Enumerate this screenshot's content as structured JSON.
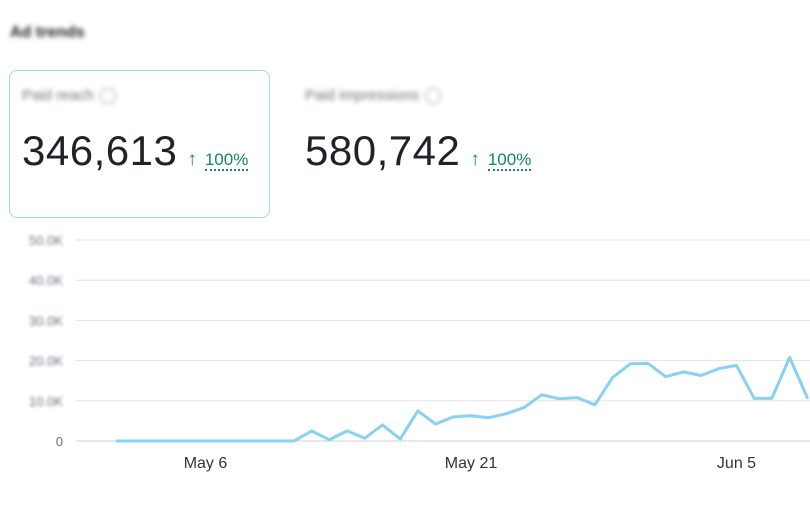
{
  "section": {
    "title": "Ad trends"
  },
  "metrics": [
    {
      "label": "Paid reach",
      "value": "346,613",
      "trend_arrow": "↑",
      "trend_pct": "100%",
      "selected": true
    },
    {
      "label": "Paid impressions",
      "value": "580,742",
      "trend_arrow": "↑",
      "trend_pct": "100%",
      "selected": false
    }
  ],
  "colors": {
    "line": "#87d2f2",
    "accent_border": "#9edfd9",
    "trend_up": "#118a5e",
    "grid": "#e3e3e3"
  },
  "icons": {
    "info": "info-circle-icon",
    "trend": "arrow-up-icon"
  },
  "chart_data": {
    "type": "line",
    "title": "",
    "y_tick_labels": [
      "0",
      "10.0K",
      "20.0K",
      "30.0K",
      "40.0K",
      "50.0K"
    ],
    "ylim": [
      0,
      50000
    ],
    "x_tick_labels": [
      {
        "label": "May 6",
        "index": 5
      },
      {
        "label": "May 21",
        "index": 20
      },
      {
        "label": "Jun 5",
        "index": 35
      }
    ],
    "grid": true,
    "series": [
      {
        "values": [
          0,
          0,
          0,
          0,
          0,
          0,
          0,
          0,
          0,
          0,
          0,
          2500,
          300,
          2500,
          700,
          4000,
          500,
          7500,
          4200,
          6000,
          6300,
          5800,
          6800,
          8300,
          11500,
          10500,
          10800,
          9000,
          15800,
          19200,
          19300,
          16000,
          17200,
          16300,
          18000,
          18800,
          10600,
          10600,
          20800,
          10800
        ]
      }
    ]
  }
}
